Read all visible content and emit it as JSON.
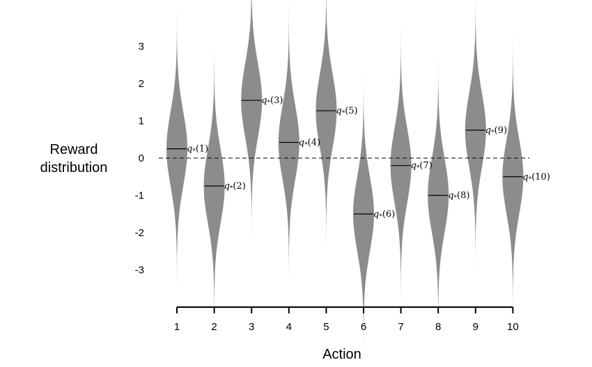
{
  "chart_data": {
    "type": "violin",
    "title": "",
    "xlabel": "Action",
    "ylabel_lines": [
      "Reward",
      "distribution"
    ],
    "categories": [
      "1",
      "2",
      "3",
      "4",
      "5",
      "6",
      "7",
      "8",
      "9",
      "10"
    ],
    "means": [
      0.25,
      -0.75,
      1.55,
      0.42,
      1.27,
      -1.5,
      -0.2,
      -1.0,
      0.75,
      -0.5
    ],
    "mean_labels": [
      "q*(1)",
      "q*(2)",
      "q*(3)",
      "q*(4)",
      "q*(5)",
      "q*(6)",
      "q*(7)",
      "q*(8)",
      "q*(9)",
      "q*(10)"
    ],
    "distribution": "normal, unit variance around each mean",
    "y_ticks": [
      3,
      2,
      1,
      0,
      -1,
      -2,
      -3
    ],
    "y_tick_labels": [
      "3",
      "2",
      "1",
      "0",
      "-1",
      "-2",
      "-3"
    ],
    "ylim": [
      -4,
      4
    ],
    "zero_line": "dashed",
    "grid": false,
    "legend": "none",
    "violin_color": "#8c8c8c"
  }
}
